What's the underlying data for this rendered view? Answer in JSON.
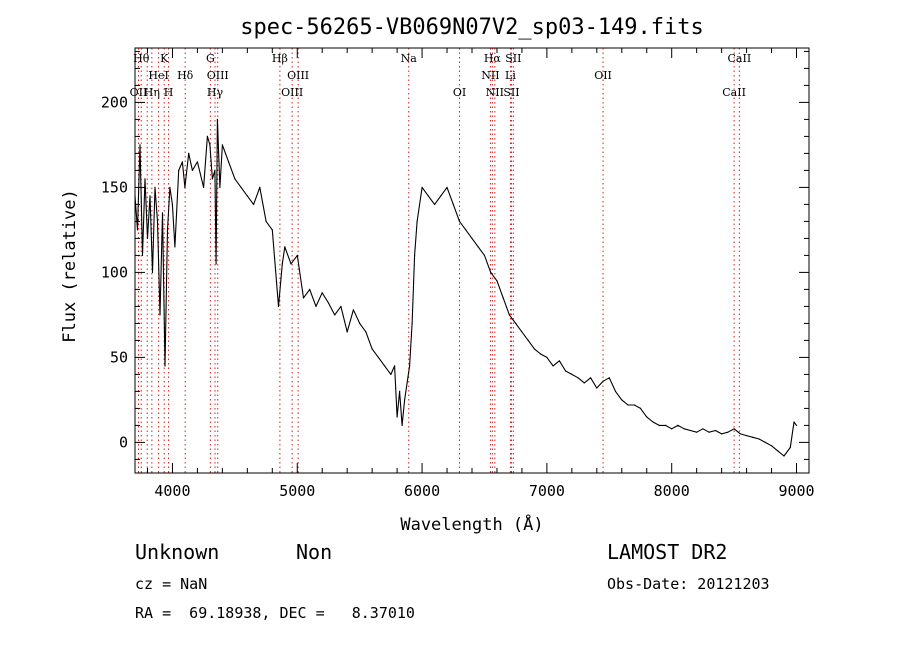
{
  "chart_data": {
    "type": "line",
    "title": "spec-56265-VB069N07V2_sp03-149.fits",
    "xlabel": "Wavelength (Å)",
    "ylabel": "Flux (relative)",
    "xlim": [
      3700,
      9100
    ],
    "ylim": [
      -18,
      232
    ],
    "x_ticks": [
      4000,
      5000,
      6000,
      7000,
      8000,
      9000
    ],
    "y_ticks": [
      0,
      50,
      100,
      150,
      200
    ],
    "grid": false,
    "series": [
      {
        "x": [
          3700,
          3720,
          3740,
          3760,
          3780,
          3800,
          3820,
          3840,
          3860,
          3880,
          3900,
          3920,
          3940,
          3960,
          3980,
          4000,
          4020,
          4050,
          4080,
          4100,
          4130,
          4160,
          4200,
          4250,
          4280,
          4300,
          4320,
          4340,
          4350,
          4360,
          4380,
          4400,
          4450,
          4500,
          4550,
          4600,
          4650,
          4700,
          4750,
          4800,
          4850,
          4880,
          4900,
          4950,
          5000,
          5050,
          5100,
          5150,
          5200,
          5250,
          5300,
          5350,
          5400,
          5450,
          5500,
          5550,
          5600,
          5650,
          5700,
          5750,
          5780,
          5800,
          5820,
          5840,
          5860,
          5880,
          5900,
          5920,
          5940,
          5960,
          6000,
          6050,
          6100,
          6150,
          6200,
          6250,
          6300,
          6350,
          6400,
          6450,
          6500,
          6550,
          6600,
          6650,
          6700,
          6750,
          6800,
          6850,
          6900,
          6950,
          7000,
          7050,
          7100,
          7150,
          7200,
          7250,
          7300,
          7350,
          7400,
          7450,
          7500,
          7550,
          7600,
          7650,
          7700,
          7750,
          7800,
          7850,
          7900,
          7950,
          8000,
          8050,
          8100,
          8150,
          8200,
          8250,
          8300,
          8350,
          8400,
          8450,
          8500,
          8550,
          8600,
          8650,
          8700,
          8750,
          8800,
          8850,
          8900,
          8950,
          8980,
          9000
        ],
        "y": [
          145,
          125,
          175,
          110,
          155,
          120,
          145,
          100,
          150,
          130,
          75,
          135,
          45,
          125,
          150,
          140,
          115,
          160,
          165,
          150,
          170,
          160,
          165,
          150,
          180,
          175,
          155,
          160,
          105,
          190,
          150,
          175,
          165,
          155,
          150,
          145,
          140,
          150,
          130,
          125,
          80,
          105,
          115,
          105,
          110,
          85,
          90,
          80,
          88,
          82,
          75,
          80,
          65,
          78,
          70,
          65,
          55,
          50,
          45,
          40,
          45,
          15,
          30,
          10,
          25,
          35,
          45,
          70,
          110,
          130,
          150,
          145,
          140,
          145,
          150,
          140,
          130,
          125,
          120,
          115,
          110,
          100,
          95,
          85,
          75,
          70,
          65,
          60,
          55,
          52,
          50,
          45,
          48,
          42,
          40,
          38,
          35,
          38,
          32,
          36,
          38,
          30,
          25,
          22,
          22,
          20,
          15,
          12,
          10,
          10,
          8,
          10,
          8,
          7,
          6,
          8,
          6,
          7,
          5,
          6,
          8,
          5,
          4,
          3,
          2,
          0,
          -2,
          -5,
          -8,
          -3,
          12,
          10
        ]
      }
    ],
    "lines": [
      {
        "wl": 3728,
        "row": 2,
        "label": "OII"
      },
      {
        "wl": 3750,
        "row": 0,
        "label": "Hθ"
      },
      {
        "wl": 3798,
        "row": 0,
        "label": ""
      },
      {
        "wl": 3835,
        "row": 2,
        "label": "Hη"
      },
      {
        "wl": 3889,
        "row": 1,
        "label": "HeI"
      },
      {
        "wl": 3934,
        "row": 0,
        "label": "K"
      },
      {
        "wl": 3969,
        "row": 2,
        "label": "H"
      },
      {
        "wl": 4102,
        "row": 1,
        "label": "Hδ"
      },
      {
        "wl": 4304,
        "row": 0,
        "label": "G"
      },
      {
        "wl": 4341,
        "row": 2,
        "label": "Hγ"
      },
      {
        "wl": 4363,
        "row": 1,
        "label": "OIII"
      },
      {
        "wl": 4861,
        "row": 0,
        "label": "Hβ"
      },
      {
        "wl": 4959,
        "row": 2,
        "label": "OIII"
      },
      {
        "wl": 5007,
        "row": 1,
        "label": "OIII"
      },
      {
        "wl": 5893,
        "row": 0,
        "label": "Na"
      },
      {
        "wl": 6300,
        "row": 2,
        "label": "OI"
      },
      {
        "wl": 6548,
        "row": 1,
        "label": "NII"
      },
      {
        "wl": 6563,
        "row": 0,
        "label": "Hα"
      },
      {
        "wl": 6583,
        "row": 2,
        "label": "NII"
      },
      {
        "wl": 6708,
        "row": 1,
        "label": "Li"
      },
      {
        "wl": 6716,
        "row": 2,
        "label": "SII"
      },
      {
        "wl": 6731,
        "row": 0,
        "label": "SII"
      },
      {
        "wl": 7450,
        "row": 1,
        "label": "OII"
      },
      {
        "wl": 8500,
        "row": 2,
        "label": "CaII"
      },
      {
        "wl": 8542,
        "row": 0,
        "label": "CaII"
      }
    ]
  },
  "footer": {
    "class_label": "Unknown",
    "subclass_label": "Non",
    "survey": "LAMOST DR2",
    "cz": "cz = NaN",
    "obs_date": "Obs-Date: 20121203",
    "coords": "RA =  69.18938, DEC =   8.37010"
  }
}
